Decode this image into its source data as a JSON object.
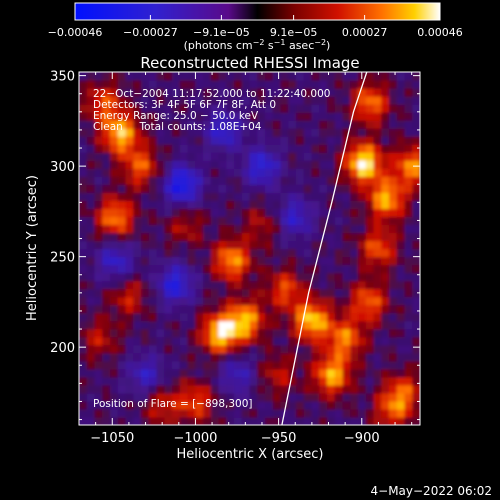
{
  "chart_data": {
    "type": "heatmap",
    "title": "Reconstructed RHESSI Image",
    "xlabel": "Heliocentric X (arcsec)",
    "ylabel": "Heliocentric Y (arcsec)",
    "xlim": [
      -1070,
      -865
    ],
    "ylim": [
      157,
      352
    ],
    "x_ticks": [
      -1050,
      -1000,
      -950,
      -900
    ],
    "x_tick_labels": [
      "−1050",
      "−1000",
      "−950",
      "−900"
    ],
    "y_ticks": [
      200,
      250,
      300,
      350
    ],
    "y_tick_labels": [
      "200",
      "250",
      "300",
      "350"
    ],
    "colorbar": {
      "unit_prefix": "(photons cm",
      "unit_exp1": "−2",
      "unit_mid": " s",
      "unit_exp2": "−1",
      "unit_mid2": " asec",
      "unit_exp3": "−2",
      "unit_suffix": ")",
      "range": [
        -0.00046,
        0.00046
      ],
      "ticks": [
        -0.00046,
        -0.00027,
        -9.1e-05,
        9.1e-05,
        0.00027,
        0.00046
      ],
      "tick_labels": [
        "−0.00046",
        "−0.00027",
        "−9.1e−05",
        "9.1e−05",
        "0.00027",
        "0.00046"
      ]
    },
    "info_lines": [
      "22−Oct−2004 11:17:52.000 to 11:22:40.000",
      "Detectors: 3F 4F 5F 6F 7F 8F, Att 0",
      "Energy Range: 25.0 − 50.0 keV",
      "Clean     Total counts: 1.08E+04"
    ],
    "flare_label": "Position of Flare = [−898,300]",
    "limb_curve": [
      [
        -948,
        157
      ],
      [
        -932,
        230
      ],
      [
        -918,
        280
      ],
      [
        -905,
        330
      ],
      [
        -897,
        352
      ]
    ],
    "hot_spots": [
      {
        "x": -1045,
        "y": 318,
        "value": 0.00038
      },
      {
        "x": -1048,
        "y": 272,
        "value": 0.00032
      },
      {
        "x": -1033,
        "y": 300,
        "value": 0.00026
      },
      {
        "x": -1055,
        "y": 335,
        "value": 0.00024
      },
      {
        "x": -1040,
        "y": 228,
        "value": 0.00018
      },
      {
        "x": -1058,
        "y": 205,
        "value": 0.00016
      },
      {
        "x": -1006,
        "y": 267,
        "value": 0.00014
      },
      {
        "x": -978,
        "y": 248,
        "value": 0.00034
      },
      {
        "x": -985,
        "y": 208,
        "value": 0.00042
      },
      {
        "x": -970,
        "y": 215,
        "value": 0.00036
      },
      {
        "x": -930,
        "y": 215,
        "value": 0.0004
      },
      {
        "x": -946,
        "y": 232,
        "value": 0.00024
      },
      {
        "x": -918,
        "y": 185,
        "value": 0.00036
      },
      {
        "x": -910,
        "y": 205,
        "value": 0.0003
      },
      {
        "x": -896,
        "y": 225,
        "value": 0.00028
      },
      {
        "x": -899,
        "y": 302,
        "value": 0.00046
      },
      {
        "x": -885,
        "y": 282,
        "value": 0.00036
      },
      {
        "x": -870,
        "y": 300,
        "value": 0.00032
      },
      {
        "x": -890,
        "y": 255,
        "value": 0.00026
      },
      {
        "x": -895,
        "y": 335,
        "value": 0.0003
      },
      {
        "x": -875,
        "y": 175,
        "value": 0.00024
      },
      {
        "x": -882,
        "y": 165,
        "value": 0.00022
      },
      {
        "x": -1000,
        "y": 170,
        "value": 0.00024
      },
      {
        "x": -1020,
        "y": 168,
        "value": 0.00018
      },
      {
        "x": -950,
        "y": 185,
        "value": 0.00016
      },
      {
        "x": -960,
        "y": 268,
        "value": 0.00014
      }
    ],
    "cold_spots": [
      {
        "x": -1008,
        "y": 290,
        "value": -0.00036
      },
      {
        "x": -1012,
        "y": 235,
        "value": -0.0003
      },
      {
        "x": -983,
        "y": 320,
        "value": -0.00026
      },
      {
        "x": -1048,
        "y": 248,
        "value": -0.00024
      },
      {
        "x": -960,
        "y": 300,
        "value": -0.00028
      },
      {
        "x": -940,
        "y": 272,
        "value": -0.00024
      },
      {
        "x": -1030,
        "y": 185,
        "value": -0.00022
      },
      {
        "x": -975,
        "y": 185,
        "value": -0.0002
      }
    ]
  },
  "footer_date": "4−May−2022 06:02"
}
